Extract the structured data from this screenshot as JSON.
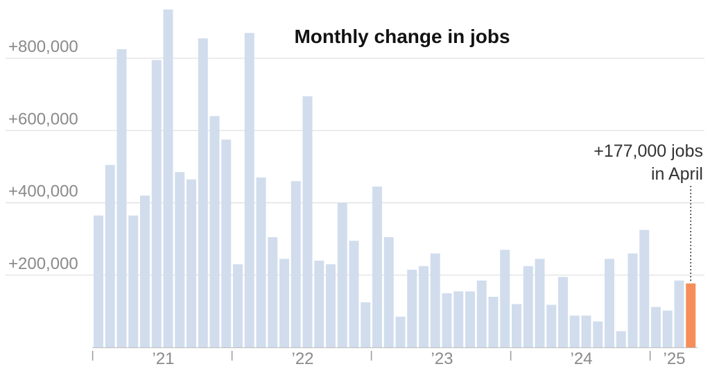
{
  "chart_data": {
    "type": "bar",
    "title": "Monthly change in jobs",
    "xlabel": "",
    "ylabel": "",
    "ylim": [
      0,
      930000
    ],
    "grid": true,
    "y_ticks": [
      {
        "value": 200000,
        "label": "+200,000"
      },
      {
        "value": 400000,
        "label": "+400,000"
      },
      {
        "value": 600000,
        "label": "+600,000"
      },
      {
        "value": 800000,
        "label": "+800,000"
      }
    ],
    "x_ticks": [
      {
        "after_index": 0,
        "label": "’21"
      },
      {
        "after_index": 12,
        "label": "’22"
      },
      {
        "after_index": 24,
        "label": "’23"
      },
      {
        "after_index": 36,
        "label": "’24"
      },
      {
        "after_index": 48,
        "label": "’25"
      }
    ],
    "series": [
      {
        "values": [
          365000,
          505000,
          825000,
          365000,
          420000,
          795000,
          935000,
          485000,
          465000,
          855000,
          640000,
          575000,
          230000,
          870000,
          470000,
          305000,
          245000,
          460000,
          695000,
          240000,
          230000,
          400000,
          295000,
          125000,
          445000,
          305000,
          85000,
          215000,
          225000,
          260000,
          150000,
          155000,
          155000,
          185000,
          140000,
          270000,
          120000,
          225000,
          245000,
          118000,
          195000,
          88000,
          88000,
          72000,
          245000,
          45000,
          260000,
          325000,
          112000,
          102000,
          185000,
          177000
        ]
      }
    ],
    "highlight_index": 51,
    "colors": {
      "bar": "#d1dded",
      "highlight": "#f58e5b"
    },
    "annotation": {
      "line1": "+177,000 jobs",
      "line2": "in April"
    }
  }
}
